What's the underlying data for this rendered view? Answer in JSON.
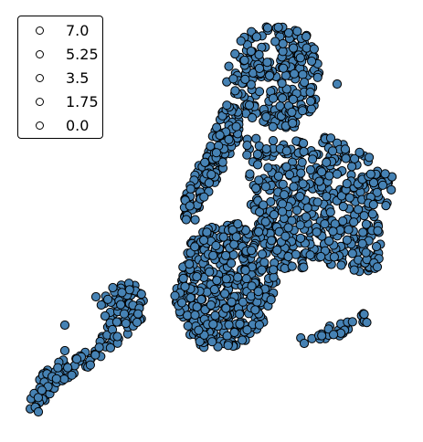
{
  "chart_data": {
    "type": "scatter",
    "title": "",
    "marker_color": "#4682b4",
    "marker_edge_color": "#000000",
    "legend": {
      "placement": "top-left",
      "entries": [
        "7.0",
        "5.25",
        "3.5",
        "1.75",
        "0.0"
      ]
    },
    "grid": false,
    "axes_visible": false
  }
}
